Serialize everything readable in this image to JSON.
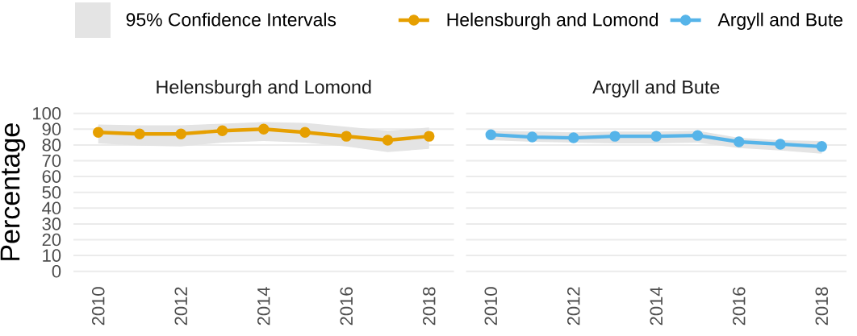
{
  "chart_data": [
    {
      "type": "line",
      "title": "Helensburgh and Lomond",
      "ylabel": "Percentage",
      "annotations": [
        "95% Confidence Intervals"
      ],
      "x": [
        2010,
        2011,
        2012,
        2013,
        2014,
        2015,
        2016,
        2017,
        2018
      ],
      "series": [
        {
          "name": "Helensburgh and Lomond",
          "color": "#e69f00",
          "values": [
            88,
            87,
            87,
            89,
            90,
            88,
            85.5,
            83,
            85.5
          ],
          "lower": [
            81,
            79.5,
            79,
            81.5,
            82.5,
            81.5,
            79,
            75.5,
            77.5
          ],
          "upper": [
            93,
            92.5,
            92.5,
            93.5,
            94.5,
            94,
            91.5,
            89,
            91
          ]
        }
      ],
      "xlim": [
        2009.4,
        2018.6
      ],
      "xticks": [
        2010,
        2012,
        2014,
        2016,
        2018
      ],
      "ylim": [
        0,
        100
      ],
      "yticks": [
        0,
        10,
        20,
        30,
        40,
        50,
        60,
        70,
        80,
        90,
        100
      ],
      "grid": "y",
      "legend": "top",
      "marker": "circle",
      "line_style": "solid"
    },
    {
      "type": "line",
      "title": "Argyll and Bute",
      "x": [
        2010,
        2011,
        2012,
        2013,
        2014,
        2015,
        2016,
        2017,
        2018
      ],
      "series": [
        {
          "name": "Argyll and Bute",
          "color": "#56b4e9",
          "values": [
            86.5,
            85,
            84.5,
            85.5,
            85.5,
            86,
            82,
            80.5,
            79
          ],
          "lower": [
            83,
            82,
            81.5,
            81,
            81,
            81.5,
            78,
            76.5,
            74.5
          ],
          "upper": [
            89,
            88.5,
            88,
            88.5,
            88.5,
            89,
            84.5,
            83,
            82.5
          ]
        }
      ],
      "xlim": [
        2009.4,
        2018.6
      ],
      "xticks": [
        2010,
        2012,
        2014,
        2016,
        2018
      ],
      "ylim": [
        0,
        100
      ],
      "yticks": [
        0,
        10,
        20,
        30,
        40,
        50,
        60,
        70,
        80,
        90,
        100
      ],
      "grid": "y",
      "legend": "top",
      "marker": "circle",
      "line_style": "solid",
      "tick_labels": "x"
    }
  ]
}
